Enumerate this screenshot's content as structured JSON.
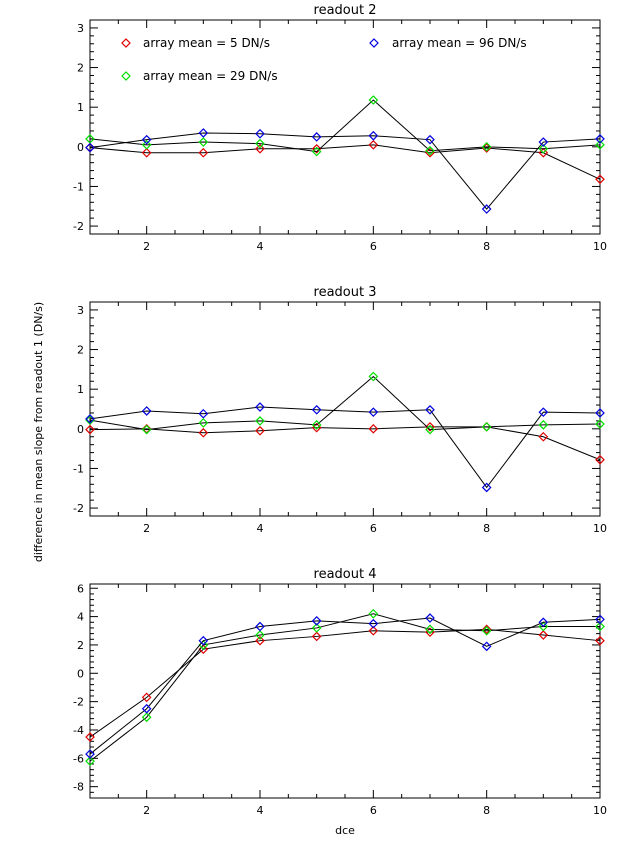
{
  "chart_data": [
    {
      "type": "line",
      "title": "readout 2",
      "x": [
        1,
        2,
        3,
        4,
        5,
        6,
        7,
        8,
        9,
        10
      ],
      "xlim": [
        1,
        10
      ],
      "ylim": [
        -2.2,
        3.2
      ],
      "xticks": [
        2,
        4,
        6,
        8,
        10
      ],
      "yticks": [
        -2,
        -1,
        0,
        1,
        2,
        3
      ],
      "series": [
        {
          "name": "array mean = 5 DN/s",
          "color": "#e00000",
          "values": [
            -0.02,
            -0.15,
            -0.15,
            -0.05,
            -0.05,
            0.05,
            -0.15,
            -0.03,
            -0.15,
            -0.82
          ]
        },
        {
          "name": "array mean = 29 DN/s",
          "color": "#00e000",
          "values": [
            0.2,
            0.05,
            0.12,
            0.08,
            -0.12,
            1.18,
            -0.1,
            0.0,
            -0.05,
            0.05
          ]
        },
        {
          "name": "array mean = 96 DN/s",
          "color": "#0000e0",
          "values": [
            -0.02,
            0.18,
            0.35,
            0.33,
            0.25,
            0.28,
            0.18,
            -1.57,
            0.12,
            0.2
          ]
        }
      ]
    },
    {
      "type": "line",
      "title": "readout 3",
      "x": [
        1,
        2,
        3,
        4,
        5,
        6,
        7,
        8,
        9,
        10
      ],
      "xlim": [
        1,
        10
      ],
      "ylim": [
        -2.2,
        3.2
      ],
      "xticks": [
        2,
        4,
        6,
        8,
        10
      ],
      "yticks": [
        -2,
        -1,
        0,
        1,
        2,
        3
      ],
      "series": [
        {
          "name": "array mean = 5 DN/s",
          "color": "#e00000",
          "values": [
            -0.02,
            0.0,
            -0.1,
            -0.05,
            0.03,
            0.0,
            0.05,
            0.05,
            -0.2,
            -0.78
          ]
        },
        {
          "name": "array mean = 29 DN/s",
          "color": "#00e000",
          "values": [
            0.22,
            -0.02,
            0.15,
            0.2,
            0.1,
            1.32,
            -0.02,
            0.05,
            0.1,
            0.12
          ]
        },
        {
          "name": "array mean = 96 DN/s",
          "color": "#0000e0",
          "values": [
            0.25,
            0.45,
            0.38,
            0.55,
            0.48,
            0.42,
            0.48,
            -1.48,
            0.42,
            0.4
          ]
        }
      ]
    },
    {
      "type": "line",
      "title": "readout 4",
      "xlabel": "dce",
      "x": [
        1,
        2,
        3,
        4,
        5,
        6,
        7,
        8,
        9,
        10
      ],
      "xlim": [
        1,
        10
      ],
      "ylim": [
        -8.8,
        6.3
      ],
      "xticks": [
        2,
        4,
        6,
        8,
        10
      ],
      "yticks": [
        -8,
        -6,
        -4,
        -2,
        0,
        2,
        4,
        6
      ],
      "series": [
        {
          "name": "array mean = 5 DN/s",
          "color": "#e00000",
          "values": [
            -4.5,
            -1.7,
            1.7,
            2.3,
            2.6,
            3.0,
            2.9,
            3.1,
            2.7,
            2.3
          ]
        },
        {
          "name": "array mean = 29 DN/s",
          "color": "#00e000",
          "values": [
            -6.2,
            -3.1,
            2.0,
            2.7,
            3.2,
            4.2,
            3.1,
            3.0,
            3.3,
            3.3
          ]
        },
        {
          "name": "array mean = 96 DN/s",
          "color": "#0000e0",
          "values": [
            -5.7,
            -2.5,
            2.3,
            3.3,
            3.7,
            3.5,
            3.9,
            1.9,
            3.6,
            3.8
          ]
        }
      ]
    }
  ],
  "legend": {
    "items": [
      {
        "label": "array mean = 5 DN/s",
        "color": "#e00000"
      },
      {
        "label": "array mean = 96 DN/s",
        "color": "#0000e0"
      },
      {
        "label": "array mean = 29 DN/s",
        "color": "#00e000"
      }
    ]
  },
  "shared_ylabel": "difference in mean slope from readout 1 (DN/s)"
}
